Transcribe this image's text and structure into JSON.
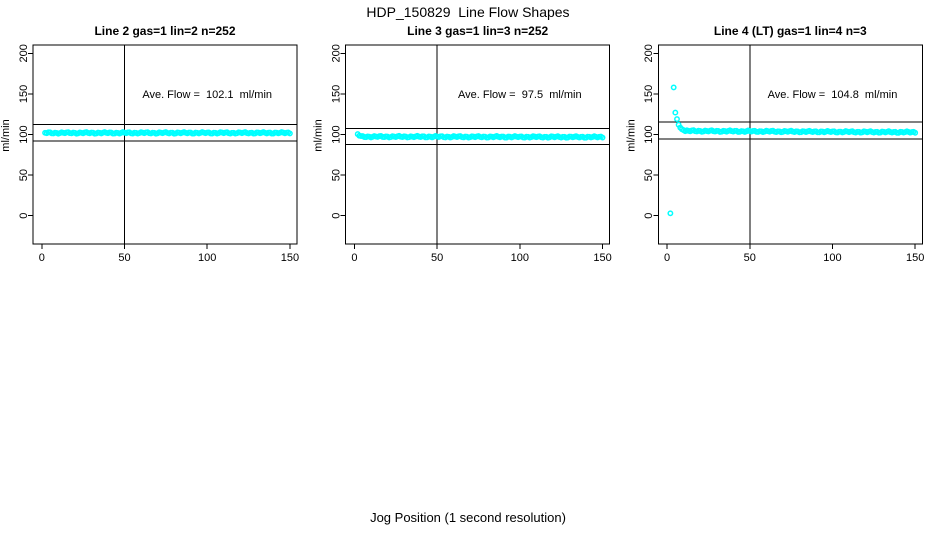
{
  "figure": {
    "title": "HDP_150829  Line Flow Shapes",
    "xlabel": "Jog Position (1 second resolution)",
    "point_color": "#00FFFF",
    "axis_color": "#000000",
    "background": "#FFFFFF"
  },
  "chart_data": [
    {
      "type": "scatter",
      "title": "Line 2 gas=1 lin=2 n=252",
      "annotation": "Ave. Flow =  102.1  ml/min",
      "ave_flow_ml_min": 102.1,
      "ylabel": "ml/min",
      "xticks": [
        0,
        50,
        100,
        150
      ],
      "yticks": [
        0,
        50,
        100,
        150,
        200
      ],
      "xlim": [
        -5.3,
        154.3
      ],
      "ylim": [
        -34.8,
        210.2
      ],
      "vline_x": 50,
      "hlines_y": [
        112.3,
        91.9
      ],
      "annotation_pos": [
        100,
        150
      ],
      "runs": [
        [
          2,
          150,
          102.0,
          102.0
        ]
      ],
      "outliers": []
    },
    {
      "type": "scatter",
      "title": "Line 3 gas=1 lin=3 n=252",
      "annotation": "Ave. Flow =  97.5  ml/min",
      "ave_flow_ml_min": 97.5,
      "ylabel": "ml/min",
      "xticks": [
        0,
        50,
        100,
        150
      ],
      "yticks": [
        0,
        50,
        100,
        150,
        200
      ],
      "xlim": [
        -5.3,
        154.3
      ],
      "ylim": [
        -34.8,
        210.2
      ],
      "vline_x": 50,
      "hlines_y": [
        107.3,
        87.8
      ],
      "annotation_pos": [
        100,
        150
      ],
      "runs": [
        [
          4,
          150,
          97.4,
          96.9
        ]
      ],
      "outliers": [
        [
          2,
          100.5
        ],
        [
          3,
          98.5
        ]
      ]
    },
    {
      "type": "scatter",
      "title": "Line 4 (LT) gas=1 lin=4 n=3",
      "annotation": "Ave. Flow =  104.8  ml/min",
      "ave_flow_ml_min": 104.8,
      "ylabel": "ml/min",
      "xticks": [
        0,
        50,
        100,
        150
      ],
      "yticks": [
        0,
        50,
        100,
        150,
        200
      ],
      "xlim": [
        -5.3,
        154.3
      ],
      "ylim": [
        -34.8,
        210.2
      ],
      "vline_x": 50,
      "hlines_y": [
        115.3,
        94.3
      ],
      "annotation_pos": [
        100,
        150
      ],
      "runs": [
        [
          11,
          150,
          104.4,
          102.8
        ]
      ],
      "outliers": [
        [
          2,
          3
        ],
        [
          4,
          158
        ],
        [
          5,
          127
        ],
        [
          6,
          119
        ],
        [
          7,
          112
        ],
        [
          8,
          108.5
        ],
        [
          9,
          106.5
        ],
        [
          10,
          105.3
        ]
      ]
    }
  ],
  "layout_note": "three scatter panels, shared outer x label"
}
